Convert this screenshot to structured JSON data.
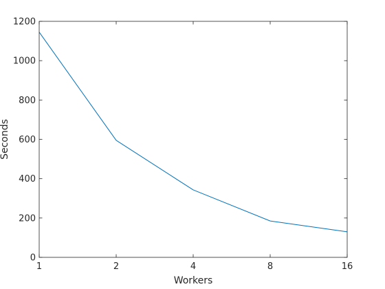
{
  "chart_data": {
    "type": "line",
    "xlabel": "Workers",
    "ylabel": "Seconds",
    "x": [
      1,
      2,
      4,
      8,
      16
    ],
    "x_scale": "log2",
    "x_ticks": [
      "1",
      "2",
      "4",
      "8",
      "16"
    ],
    "xlim": [
      1,
      16
    ],
    "ylim": [
      0,
      1200
    ],
    "y_ticks": [
      "0",
      "200",
      "400",
      "600",
      "800",
      "1000",
      "1200"
    ],
    "grid": false,
    "legend": "none",
    "series": [
      {
        "values": [
          1145,
          595,
          343,
          185,
          130
        ],
        "color": "#0072BD"
      }
    ],
    "axis_color": "#262626"
  }
}
